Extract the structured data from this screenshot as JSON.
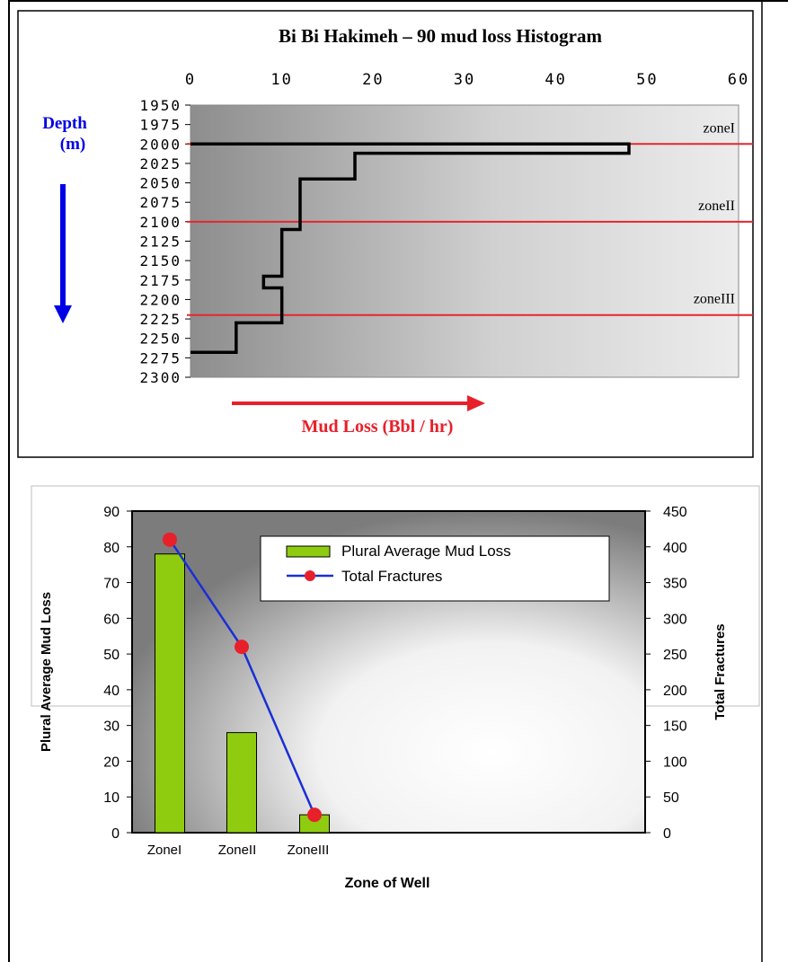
{
  "colors": {
    "red_line": "#e8252e",
    "blue": "#0000e6",
    "red_arrow": "#e8202a",
    "bar_fill": "#8fcc10",
    "line_series": "#1a2fd6",
    "marker": "#e8202a"
  },
  "chart_data": [
    {
      "type": "line",
      "title": "Bi Bi Hakimeh – 90 mud loss Histogram",
      "xlabel": "Mud Loss (Bbl / hr)",
      "ylabel_line1": "Depth",
      "ylabel_line2": "(m)",
      "xlim": [
        0,
        60
      ],
      "ylim": [
        1950,
        2300
      ],
      "y_inverted": true,
      "x_ticks": [
        "0",
        "10",
        "20",
        "30",
        "40",
        "50",
        "60"
      ],
      "y_ticks": [
        "1950",
        "1975",
        "2000",
        "2025",
        "2050",
        "2075",
        "2100",
        "2125",
        "2150",
        "2175",
        "2200",
        "2225",
        "2250",
        "2275",
        "2300"
      ],
      "step_profile": {
        "points": [
          [
            0,
            2000
          ],
          [
            48,
            2000
          ],
          [
            48,
            2012
          ],
          [
            18,
            2012
          ],
          [
            18,
            2045
          ],
          [
            12,
            2045
          ],
          [
            12,
            2110
          ],
          [
            10,
            2110
          ],
          [
            10,
            2170
          ],
          [
            8,
            2170
          ],
          [
            8,
            2185
          ],
          [
            10,
            2185
          ],
          [
            10,
            2230
          ],
          [
            5,
            2230
          ],
          [
            5,
            2268
          ],
          [
            0,
            2268
          ]
        ]
      },
      "zones": [
        {
          "label": "zoneI",
          "depth": 2000
        },
        {
          "label": "zoneII",
          "depth": 2100
        },
        {
          "label": "zoneIII",
          "depth": 2220
        }
      ]
    },
    {
      "type": "bar",
      "categories": [
        "ZoneI",
        "ZoneII",
        "ZoneIII"
      ],
      "xlabel": "Zone of Well",
      "ylabel": "Plural Average Mud Loss",
      "y2label": "Total  Fractures",
      "ylim": [
        0,
        90
      ],
      "y2lim": [
        0,
        450
      ],
      "y_ticks": [
        "0",
        "10",
        "20",
        "30",
        "40",
        "50",
        "60",
        "70",
        "80",
        "90"
      ],
      "y2_ticks": [
        "0",
        "50",
        "100",
        "150",
        "200",
        "250",
        "300",
        "350",
        "400",
        "450"
      ],
      "series": [
        {
          "name": "Plural Average Mud Loss",
          "type": "bar",
          "axis": "left",
          "values": [
            78,
            28,
            5
          ]
        },
        {
          "name": "Total  Fractures",
          "type": "line",
          "axis": "right",
          "values": [
            410,
            260,
            25
          ]
        }
      ],
      "legend_position": "top-right"
    }
  ]
}
